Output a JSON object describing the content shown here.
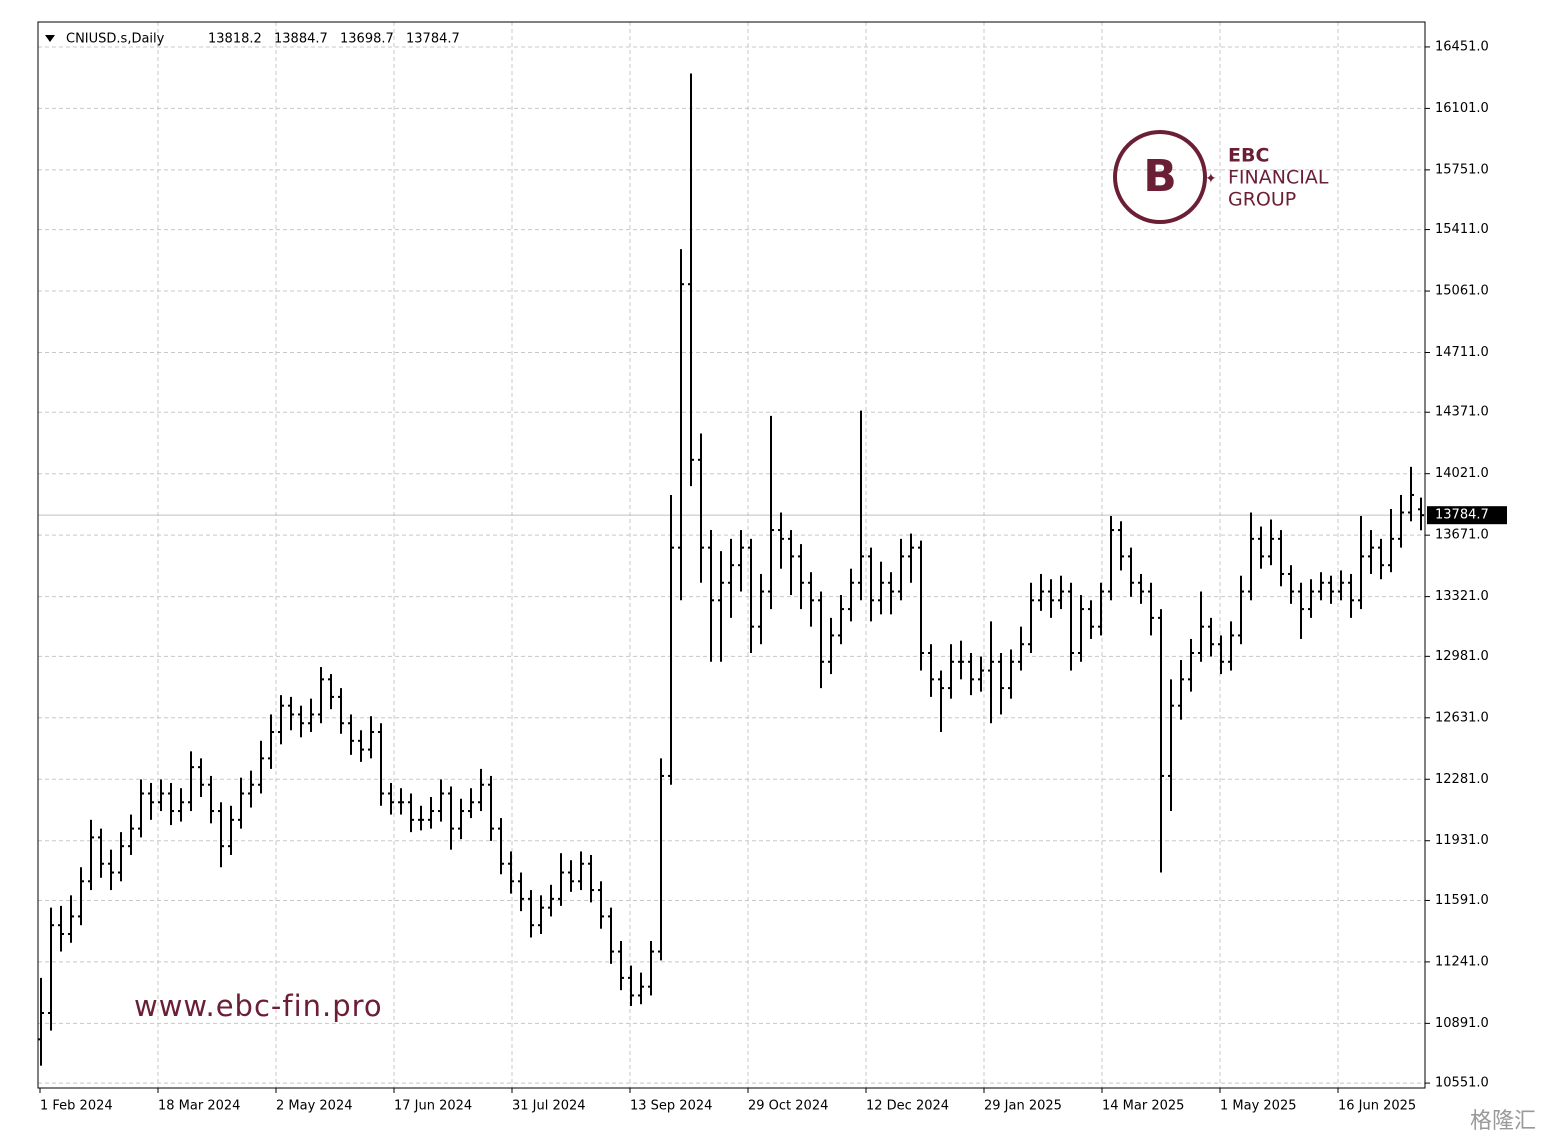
{
  "chart_data": {
    "type": "ohlc",
    "title": "CNIUSD.s,Daily",
    "ylim": [
      10523,
      16593
    ],
    "yticks": [
      {
        "value": 16451,
        "label": "16451.0"
      },
      {
        "value": 16101,
        "label": "16101.0"
      },
      {
        "value": 15751,
        "label": "15751.0"
      },
      {
        "value": 15411,
        "label": "15411.0"
      },
      {
        "value": 15061,
        "label": "15061.0"
      },
      {
        "value": 14711,
        "label": "14711.0"
      },
      {
        "value": 14371,
        "label": "14371.0"
      },
      {
        "value": 14021,
        "label": "14021.0"
      },
      {
        "value": 13671,
        "label": "13671.0"
      },
      {
        "value": 13321,
        "label": "13321.0"
      },
      {
        "value": 12981,
        "label": "12981.0"
      },
      {
        "value": 12631,
        "label": "12631.0"
      },
      {
        "value": 12281,
        "label": "12281.0"
      },
      {
        "value": 11931,
        "label": "11931.0"
      },
      {
        "value": 11591,
        "label": "11591.0"
      },
      {
        "value": 11241,
        "label": "11241.0"
      },
      {
        "value": 10891,
        "label": "10891.0"
      },
      {
        "value": 10551,
        "label": "10551.0"
      }
    ],
    "xtick_labels": [
      "1 Feb 2024",
      "18 Mar 2024",
      "2 May 2024",
      "17 Jun 2024",
      "31 Jul 2024",
      "13 Sep 2024",
      "29 Oct 2024",
      "12 Dec 2024",
      "29 Jan 2025",
      "14 Mar 2025",
      "1 May 2025",
      "16 Jun 2025"
    ],
    "grid": true,
    "color": "#000000",
    "ohlc": [
      [
        10800,
        11150,
        10650,
        10950
      ],
      [
        10950,
        11550,
        10850,
        11450
      ],
      [
        11450,
        11560,
        11300,
        11400
      ],
      [
        11400,
        11620,
        11350,
        11500
      ],
      [
        11500,
        11780,
        11450,
        11700
      ],
      [
        11700,
        12050,
        11650,
        11950
      ],
      [
        11950,
        12000,
        11720,
        11800
      ],
      [
        11800,
        11880,
        11650,
        11750
      ],
      [
        11750,
        11980,
        11700,
        11900
      ],
      [
        11900,
        12080,
        11850,
        12000
      ],
      [
        12000,
        12280,
        11950,
        12200
      ],
      [
        12200,
        12260,
        12050,
        12150
      ],
      [
        12150,
        12280,
        12100,
        12200
      ],
      [
        12200,
        12260,
        12020,
        12100
      ],
      [
        12100,
        12230,
        12040,
        12150
      ],
      [
        12150,
        12440,
        12100,
        12350
      ],
      [
        12350,
        12400,
        12180,
        12250
      ],
      [
        12250,
        12300,
        12030,
        12100
      ],
      [
        12100,
        12150,
        11780,
        11900
      ],
      [
        11900,
        12130,
        11850,
        12050
      ],
      [
        12050,
        12290,
        12000,
        12200
      ],
      [
        12200,
        12330,
        12120,
        12250
      ],
      [
        12250,
        12500,
        12200,
        12400
      ],
      [
        12400,
        12650,
        12340,
        12550
      ],
      [
        12550,
        12760,
        12480,
        12700
      ],
      [
        12700,
        12750,
        12560,
        12650
      ],
      [
        12650,
        12700,
        12520,
        12600
      ],
      [
        12600,
        12740,
        12550,
        12650
      ],
      [
        12650,
        12920,
        12600,
        12850
      ],
      [
        12850,
        12880,
        12680,
        12750
      ],
      [
        12750,
        12800,
        12540,
        12600
      ],
      [
        12600,
        12650,
        12420,
        12500
      ],
      [
        12500,
        12560,
        12380,
        12450
      ],
      [
        12450,
        12640,
        12400,
        12550
      ],
      [
        12550,
        12600,
        12130,
        12200
      ],
      [
        12200,
        12260,
        12080,
        12150
      ],
      [
        12150,
        12230,
        12080,
        12150
      ],
      [
        12150,
        12200,
        11980,
        12050
      ],
      [
        12050,
        12130,
        11990,
        12050
      ],
      [
        12050,
        12180,
        12000,
        12100
      ],
      [
        12100,
        12280,
        12040,
        12200
      ],
      [
        12200,
        12240,
        11880,
        12000
      ],
      [
        12000,
        12170,
        11940,
        12100
      ],
      [
        12100,
        12230,
        12060,
        12150
      ],
      [
        12150,
        12340,
        12100,
        12250
      ],
      [
        12250,
        12300,
        11930,
        12000
      ],
      [
        12000,
        12060,
        11740,
        11800
      ],
      [
        11800,
        11870,
        11630,
        11700
      ],
      [
        11700,
        11750,
        11530,
        11600
      ],
      [
        11600,
        11650,
        11380,
        11450
      ],
      [
        11450,
        11620,
        11400,
        11550
      ],
      [
        11550,
        11680,
        11500,
        11600
      ],
      [
        11600,
        11860,
        11560,
        11750
      ],
      [
        11750,
        11820,
        11640,
        11700
      ],
      [
        11700,
        11870,
        11650,
        11800
      ],
      [
        11800,
        11850,
        11580,
        11650
      ],
      [
        11650,
        11700,
        11430,
        11500
      ],
      [
        11500,
        11550,
        11230,
        11300
      ],
      [
        11300,
        11360,
        11080,
        11150
      ],
      [
        11150,
        11220,
        10990,
        11050
      ],
      [
        11050,
        11180,
        11000,
        11100
      ],
      [
        11100,
        11360,
        11050,
        11300
      ],
      [
        11300,
        12400,
        11250,
        12300
      ],
      [
        12300,
        13900,
        12250,
        13600
      ],
      [
        13600,
        15300,
        13300,
        15100
      ],
      [
        15100,
        16300,
        13950,
        14100
      ],
      [
        14100,
        14250,
        13400,
        13600
      ],
      [
        13600,
        13700,
        12950,
        13300
      ],
      [
        13300,
        13580,
        12950,
        13400
      ],
      [
        13400,
        13650,
        13200,
        13500
      ],
      [
        13500,
        13700,
        13350,
        13600
      ],
      [
        13600,
        13650,
        13000,
        13150
      ],
      [
        13150,
        13450,
        13050,
        13350
      ],
      [
        13350,
        14350,
        13250,
        13700
      ],
      [
        13700,
        13800,
        13480,
        13650
      ],
      [
        13650,
        13700,
        13330,
        13550
      ],
      [
        13550,
        13620,
        13250,
        13400
      ],
      [
        13400,
        13460,
        13150,
        13300
      ],
      [
        13300,
        13350,
        12800,
        12950
      ],
      [
        12950,
        13200,
        12880,
        13100
      ],
      [
        13100,
        13330,
        13050,
        13250
      ],
      [
        13250,
        13480,
        13180,
        13400
      ],
      [
        13400,
        14380,
        13300,
        13550
      ],
      [
        13550,
        13600,
        13180,
        13300
      ],
      [
        13300,
        13520,
        13220,
        13400
      ],
      [
        13400,
        13460,
        13220,
        13350
      ],
      [
        13350,
        13650,
        13300,
        13550
      ],
      [
        13550,
        13680,
        13400,
        13600
      ],
      [
        13600,
        13640,
        12900,
        13000
      ],
      [
        13000,
        13050,
        12750,
        12850
      ],
      [
        12850,
        12900,
        12550,
        12800
      ],
      [
        12800,
        13050,
        12740,
        12950
      ],
      [
        12950,
        13070,
        12850,
        12950
      ],
      [
        12950,
        13000,
        12760,
        12850
      ],
      [
        12850,
        12980,
        12780,
        12900
      ],
      [
        12900,
        13180,
        12600,
        12950
      ],
      [
        12950,
        13000,
        12650,
        12800
      ],
      [
        12800,
        13020,
        12740,
        12950
      ],
      [
        12950,
        13150,
        12900,
        13050
      ],
      [
        13050,
        13400,
        13000,
        13300
      ],
      [
        13300,
        13450,
        13240,
        13350
      ],
      [
        13350,
        13420,
        13200,
        13300
      ],
      [
        13300,
        13440,
        13250,
        13350
      ],
      [
        13350,
        13400,
        12900,
        13000
      ],
      [
        13000,
        13330,
        12950,
        13250
      ],
      [
        13250,
        13300,
        13080,
        13150
      ],
      [
        13150,
        13400,
        13100,
        13350
      ],
      [
        13350,
        13780,
        13300,
        13700
      ],
      [
        13700,
        13750,
        13470,
        13550
      ],
      [
        13550,
        13600,
        13320,
        13400
      ],
      [
        13400,
        13450,
        13280,
        13350
      ],
      [
        13350,
        13400,
        13100,
        13200
      ],
      [
        13200,
        13250,
        11750,
        12300
      ],
      [
        12300,
        12850,
        12100,
        12700
      ],
      [
        12700,
        12960,
        12620,
        12850
      ],
      [
        12850,
        13080,
        12780,
        13000
      ],
      [
        13000,
        13350,
        12950,
        13150
      ],
      [
        13150,
        13200,
        12980,
        13050
      ],
      [
        13050,
        13100,
        12880,
        12950
      ],
      [
        12950,
        13180,
        12900,
        13100
      ],
      [
        13100,
        13440,
        13050,
        13350
      ],
      [
        13350,
        13800,
        13300,
        13650
      ],
      [
        13650,
        13720,
        13480,
        13550
      ],
      [
        13550,
        13760,
        13500,
        13650
      ],
      [
        13650,
        13700,
        13380,
        13450
      ],
      [
        13450,
        13500,
        13280,
        13350
      ],
      [
        13350,
        13400,
        13080,
        13250
      ],
      [
        13250,
        13420,
        13200,
        13350
      ],
      [
        13350,
        13460,
        13300,
        13400
      ],
      [
        13400,
        13440,
        13280,
        13350
      ],
      [
        13350,
        13470,
        13300,
        13400
      ],
      [
        13400,
        13450,
        13200,
        13300
      ],
      [
        13300,
        13780,
        13250,
        13550
      ],
      [
        13550,
        13700,
        13450,
        13600
      ],
      [
        13600,
        13650,
        13420,
        13500
      ],
      [
        13500,
        13820,
        13460,
        13650
      ],
      [
        13650,
        13900,
        13600,
        13800
      ],
      [
        13800,
        14060,
        13750,
        13900
      ],
      [
        13818.2,
        13884.7,
        13698.7,
        13784.7
      ]
    ]
  },
  "logo": {
    "line1": "EBC",
    "line2": "FINANCIAL",
    "line3": "GROUP"
  },
  "watermark": "www.ebc-fin.pro",
  "corner_mark": "格隆汇"
}
